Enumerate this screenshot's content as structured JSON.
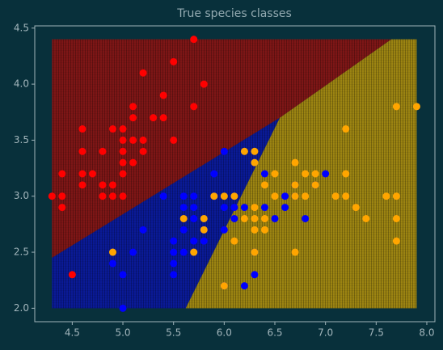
{
  "chart_data": {
    "type": "scatter",
    "title": "True species classes",
    "xlim": [
      4.13,
      8.08
    ],
    "ylim": [
      1.88,
      4.52
    ],
    "xticks": [
      4.5,
      {
        "value": 5,
        "label": "5.0"
      },
      5.5,
      {
        "value": 6,
        "label": "6.0"
      },
      6.5,
      {
        "value": 7,
        "label": "7.0"
      },
      7.5,
      {
        "value": 8,
        "label": "8.0"
      }
    ],
    "yticks": [
      {
        "value": 2,
        "label": "2.0"
      },
      2.5,
      {
        "value": 3,
        "label": "3.0"
      },
      3.5,
      {
        "value": 4,
        "label": "4.0"
      },
      4.5
    ],
    "regions": [
      {
        "color": "#7e1616",
        "x": [
          4.3,
          4.3,
          7.65,
          6.55
        ],
        "y": [
          2.45,
          4.4,
          4.4,
          3.7
        ]
      },
      {
        "color": "#0a1a96",
        "x": [
          4.3,
          4.3,
          6.55,
          5.62
        ],
        "y": [
          2.0,
          2.45,
          3.7,
          2.0
        ]
      },
      {
        "color": "#9c8412",
        "x": [
          5.62,
          6.55,
          7.65,
          7.9,
          7.9
        ],
        "y": [
          2.0,
          3.7,
          4.4,
          4.4,
          2.0
        ]
      }
    ],
    "series": [
      {
        "color": "#ff0000",
        "x": [
          5.1,
          4.9,
          4.7,
          4.6,
          5.0,
          5.4,
          4.6,
          5.0,
          4.4,
          4.9,
          5.4,
          4.8,
          4.8,
          4.3,
          5.8,
          5.7,
          5.7,
          5.1,
          5.1,
          4.6,
          5.1,
          5.0,
          5.2,
          5.2,
          4.8,
          5.2,
          5.5,
          5.0,
          5.5,
          4.9,
          4.4,
          5.0,
          4.5,
          4.4,
          4.6,
          5.3,
          5.0
        ],
        "y": [
          3.5,
          3.0,
          3.2,
          3.1,
          3.6,
          3.9,
          3.4,
          3.4,
          2.9,
          3.1,
          3.7,
          3.4,
          3.0,
          3.0,
          4.0,
          4.4,
          3.8,
          3.8,
          3.7,
          3.6,
          3.3,
          3.0,
          3.5,
          3.4,
          3.1,
          4.1,
          4.2,
          3.2,
          3.5,
          3.6,
          3.0,
          3.5,
          2.3,
          3.2,
          3.2,
          3.7,
          3.3
        ]
      },
      {
        "color": "#0000ff",
        "x": [
          7.0,
          6.4,
          6.9,
          5.5,
          6.5,
          5.7,
          6.3,
          4.9,
          6.6,
          5.2,
          5.0,
          5.9,
          6.0,
          6.1,
          5.6,
          6.7,
          5.6,
          5.8,
          6.2,
          5.6,
          5.9,
          6.1,
          6.3,
          6.4,
          6.6,
          6.8,
          6.7,
          6.0,
          5.7,
          5.5,
          6.0,
          5.4,
          6.0,
          6.3,
          5.5,
          5.5,
          6.1,
          5.8,
          5.0,
          5.6,
          5.7,
          5.7,
          6.2,
          5.1,
          5.7
        ],
        "y": [
          3.2,
          3.2,
          3.1,
          2.3,
          2.8,
          2.8,
          3.3,
          2.4,
          2.9,
          2.7,
          2.0,
          3.0,
          2.2,
          2.9,
          2.9,
          3.1,
          3.0,
          2.7,
          2.2,
          2.5,
          3.2,
          2.8,
          2.5,
          2.9,
          3.0,
          2.8,
          3.0,
          2.9,
          2.6,
          2.4,
          2.7,
          3.0,
          3.4,
          2.3,
          2.5,
          2.6,
          3.0,
          2.6,
          2.3,
          2.7,
          3.0,
          2.9,
          2.9,
          2.5,
          2.8
        ]
      },
      {
        "color": "#ffa500",
        "x": [
          6.3,
          5.8,
          7.1,
          6.3,
          6.5,
          7.6,
          4.9,
          7.3,
          6.7,
          7.2,
          6.5,
          6.4,
          6.8,
          5.7,
          5.8,
          7.7,
          7.7,
          6.0,
          6.9,
          5.6,
          7.7,
          6.3,
          6.7,
          7.2,
          6.2,
          6.1,
          6.4,
          7.2,
          7.4,
          7.9,
          6.3,
          6.1,
          7.7,
          6.3,
          6.4,
          6.0,
          6.9,
          6.7,
          6.8,
          6.7,
          6.3,
          6.2,
          5.9
        ],
        "y": [
          3.3,
          2.7,
          3.0,
          2.9,
          3.0,
          3.0,
          2.5,
          2.9,
          2.5,
          3.6,
          3.2,
          2.7,
          3.0,
          2.5,
          2.8,
          3.8,
          2.6,
          2.2,
          3.2,
          2.8,
          2.8,
          2.7,
          3.3,
          3.2,
          2.8,
          3.0,
          2.8,
          3.0,
          2.8,
          3.8,
          2.8,
          2.6,
          3.0,
          3.4,
          3.1,
          3.0,
          3.1,
          3.1,
          3.2,
          3.0,
          2.5,
          3.4,
          3.0
        ]
      }
    ]
  }
}
